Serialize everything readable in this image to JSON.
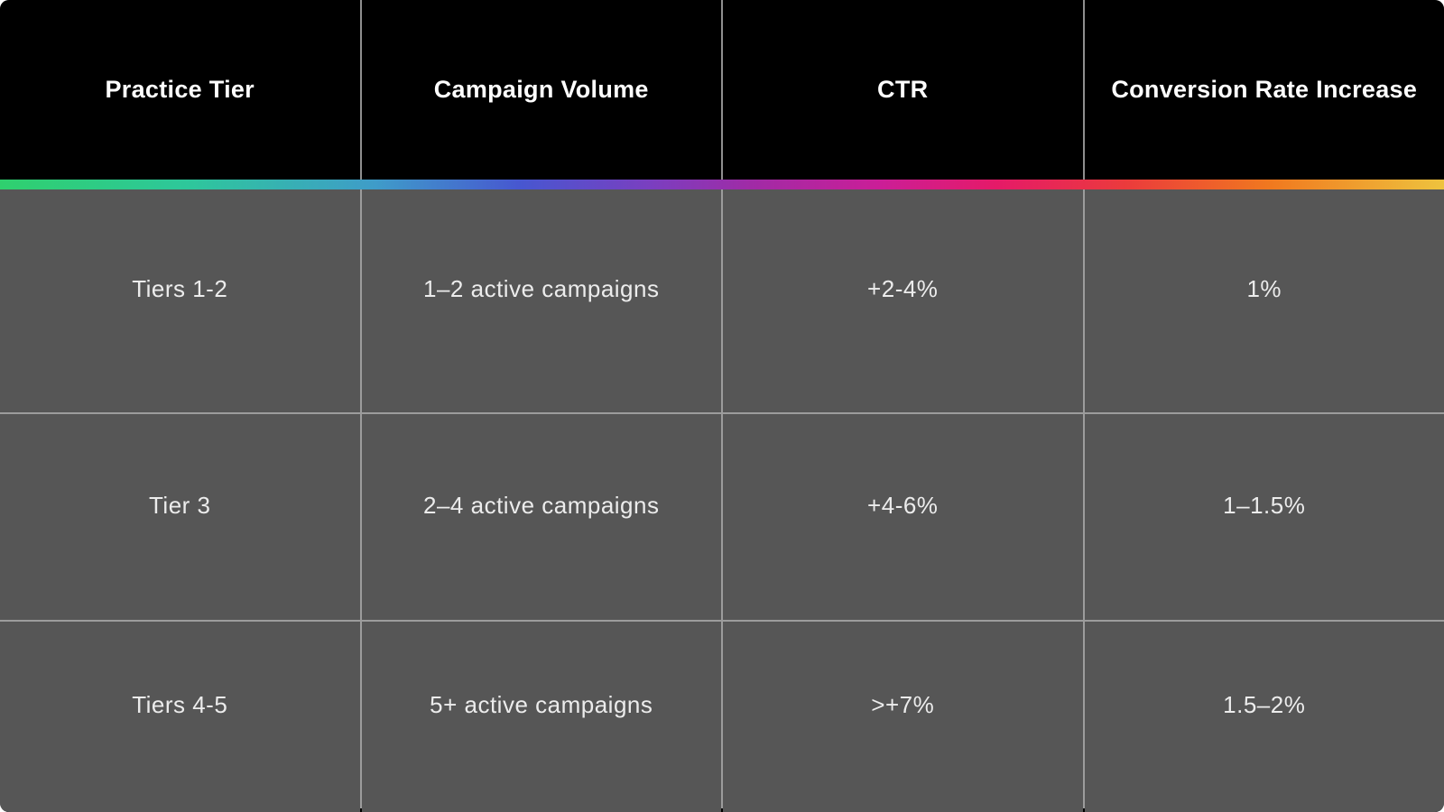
{
  "table": {
    "columns": [
      "Practice Tier",
      "Campaign Volume",
      "CTR",
      "Conversion Rate Increase"
    ],
    "rows": [
      [
        "Tiers 1-2",
        "1–2 active campaigns",
        "+2-4%",
        "1%"
      ],
      [
        "Tier 3",
        "2–4 active campaigns",
        "+4-6%",
        "1–1.5%"
      ],
      [
        "Tiers 4-5",
        "5+ active campaigns",
        ">+7%",
        "1.5–2%"
      ]
    ]
  },
  "chart_data": {
    "type": "table",
    "title": "",
    "columns": [
      "Practice Tier",
      "Campaign Volume",
      "CTR",
      "Conversion Rate Increase"
    ],
    "rows": [
      {
        "practice_tier": "Tiers 1-2",
        "campaign_volume": "1–2 active campaigns",
        "ctr": "+2-4%",
        "conversion_rate_increase": "1%"
      },
      {
        "practice_tier": "Tier 3",
        "campaign_volume": "2–4 active campaigns",
        "ctr": "+4-6%",
        "conversion_rate_increase": "1–1.5%"
      },
      {
        "practice_tier": "Tiers 4-5",
        "campaign_volume": "5+ active campaigns",
        "ctr": ">+7%",
        "conversion_rate_increase": "1.5–2%"
      }
    ]
  },
  "colors": {
    "header_bg": "#000000",
    "header_text": "#ffffff",
    "body_bg": "#565656",
    "body_text": "#ececec",
    "grid_line": "#9c9c9c",
    "gradient_stops": [
      "#2fd06e",
      "#2ec79b",
      "#3f9cc9",
      "#4757d0",
      "#7a3fc0",
      "#a02ba6",
      "#cb1e97",
      "#e51a68",
      "#eb3b3c",
      "#f0791f",
      "#eec33e"
    ]
  }
}
